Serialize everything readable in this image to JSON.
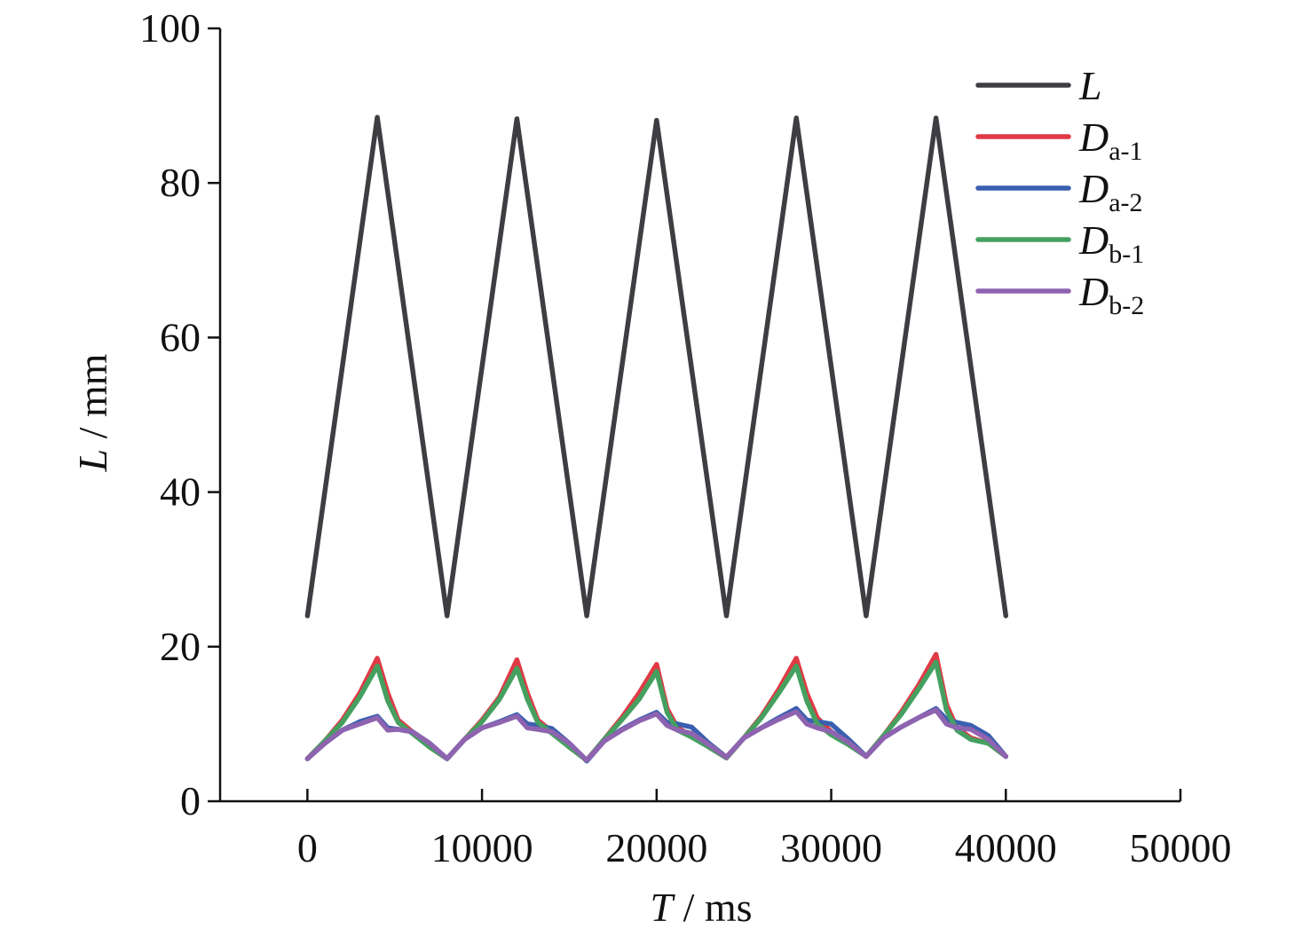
{
  "chart_data": {
    "type": "line",
    "xlabel": {
      "var": "T",
      "unit": " / ms"
    },
    "ylabel": {
      "var": "L",
      "unit": " / mm"
    },
    "xlim": [
      -5000,
      50000
    ],
    "ylim": [
      0,
      100
    ],
    "xticks": [
      0,
      10000,
      20000,
      30000,
      40000,
      50000
    ],
    "yticks": [
      0,
      20,
      40,
      60,
      80,
      100
    ],
    "grid": false,
    "legend": {
      "placement": "top-right"
    },
    "series": [
      {
        "name": "L",
        "name_main": "L",
        "name_sub": "",
        "color": "#3d3d42",
        "x": [
          0,
          4000,
          8000,
          12000,
          16000,
          20000,
          24000,
          28000,
          32000,
          36000,
          40000
        ],
        "y": [
          24,
          88.5,
          24,
          88.3,
          24,
          88.1,
          24,
          88.4,
          24,
          88.4,
          24
        ]
      },
      {
        "name": "Da-1",
        "name_main": "D",
        "name_sub": "a-1",
        "color": "#e03a45",
        "x": [
          0,
          1000,
          2000,
          3000,
          4000,
          4600,
          5200,
          6000,
          7000,
          8000,
          9000,
          10000,
          11000,
          12000,
          12600,
          13200,
          14000,
          15000,
          16000,
          17000,
          18000,
          19000,
          20000,
          20600,
          21200,
          22000,
          23000,
          24000,
          25000,
          26000,
          27000,
          28000,
          28600,
          29200,
          30000,
          31000,
          32000,
          33000,
          34000,
          35000,
          36000,
          36600,
          37200,
          38000,
          39000,
          40000
        ],
        "y": [
          5.5,
          7.8,
          10.5,
          14,
          18.5,
          14,
          10.5,
          9,
          7,
          5.5,
          8,
          10.5,
          13.5,
          18.3,
          14,
          10.5,
          9,
          7,
          5.3,
          8,
          10.8,
          14,
          17.7,
          12,
          9.5,
          8.5,
          7,
          5.6,
          8.2,
          11,
          14.5,
          18.5,
          14,
          10.8,
          9,
          7.5,
          5.8,
          8.5,
          11.5,
          15,
          19,
          12.5,
          9.5,
          8.2,
          7.5,
          5.8
        ]
      },
      {
        "name": "Da-2",
        "name_main": "D",
        "name_sub": "a-2",
        "color": "#3a5fb0",
        "x": [
          0,
          1000,
          2000,
          3000,
          4000,
          4600,
          5200,
          6000,
          7000,
          8000,
          9000,
          10000,
          11000,
          12000,
          12600,
          13200,
          14000,
          15000,
          16000,
          17000,
          18000,
          19000,
          20000,
          20600,
          21200,
          22000,
          23000,
          24000,
          25000,
          26000,
          27000,
          28000,
          28600,
          29200,
          30000,
          31000,
          32000,
          33000,
          34000,
          35000,
          36000,
          36600,
          37200,
          38000,
          39000,
          40000
        ],
        "y": [
          5.5,
          7.5,
          9.2,
          10.3,
          11,
          9.5,
          9.3,
          9,
          7.5,
          5.5,
          8,
          9.5,
          10.3,
          11.2,
          10,
          9.8,
          9.4,
          7.5,
          5.2,
          7.8,
          9.3,
          10.5,
          11.5,
          10.2,
          10,
          9.6,
          7.5,
          5.7,
          8.2,
          9.5,
          10.8,
          12,
          10.5,
          10.3,
          10,
          8,
          5.8,
          8.2,
          9.6,
          10.8,
          12,
          10.6,
          10.2,
          9.8,
          8.5,
          5.8
        ]
      },
      {
        "name": "Db-1",
        "name_main": "D",
        "name_sub": "b-1",
        "color": "#45a060",
        "x": [
          0,
          1000,
          2000,
          3000,
          4000,
          4600,
          5200,
          6000,
          7000,
          8000,
          9000,
          10000,
          11000,
          12000,
          12600,
          13200,
          14000,
          15000,
          16000,
          17000,
          18000,
          19000,
          20000,
          20600,
          21200,
          22000,
          23000,
          24000,
          25000,
          26000,
          27000,
          28000,
          28600,
          29200,
          30000,
          31000,
          32000,
          33000,
          34000,
          35000,
          36000,
          36600,
          37200,
          38000,
          39000,
          40000
        ],
        "y": [
          5.5,
          7.8,
          10.2,
          13.5,
          17.5,
          13,
          10.2,
          8.8,
          7,
          5.5,
          8,
          10.3,
          13.2,
          17.2,
          13.2,
          10.2,
          8.8,
          7,
          5.3,
          8,
          10.5,
          13.2,
          16.8,
          11.5,
          9.2,
          8.3,
          7,
          5.6,
          8.2,
          10.8,
          14,
          17.5,
          13,
          10,
          8.6,
          7.3,
          5.8,
          8.5,
          11.2,
          14.5,
          18,
          11.8,
          9.2,
          8,
          7.5,
          5.8
        ]
      },
      {
        "name": "Db-2",
        "name_main": "D",
        "name_sub": "b-2",
        "color": "#8e63b0",
        "x": [
          0,
          1000,
          2000,
          3000,
          4000,
          4600,
          5200,
          6000,
          7000,
          8000,
          9000,
          10000,
          11000,
          12000,
          12600,
          13200,
          14000,
          15000,
          16000,
          17000,
          18000,
          19000,
          20000,
          20600,
          21200,
          22000,
          23000,
          24000,
          25000,
          26000,
          27000,
          28000,
          28600,
          29200,
          30000,
          31000,
          32000,
          33000,
          34000,
          35000,
          36000,
          36600,
          37200,
          38000,
          39000,
          40000
        ],
        "y": [
          5.5,
          7.5,
          9.2,
          10,
          10.8,
          9.2,
          9.3,
          9,
          7.5,
          5.5,
          8,
          9.5,
          10.2,
          11,
          9.5,
          9.3,
          9,
          7.5,
          5.3,
          7.8,
          9.2,
          10.4,
          11.3,
          9.8,
          9.2,
          8.8,
          7.3,
          5.7,
          8.2,
          9.5,
          10.6,
          11.6,
          10,
          9.5,
          9,
          7.6,
          5.8,
          8.2,
          9.6,
          10.8,
          11.8,
          10,
          9.5,
          9.3,
          8,
          5.8
        ]
      }
    ]
  }
}
